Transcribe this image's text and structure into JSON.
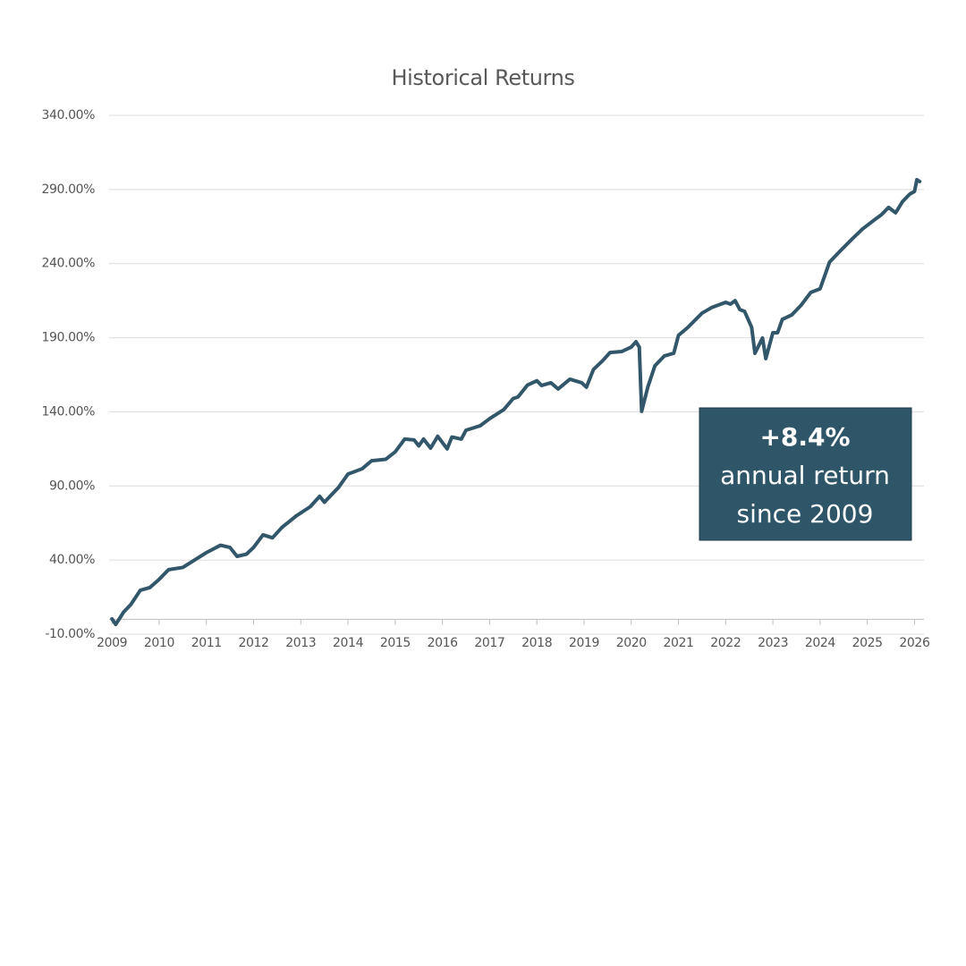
{
  "chart_data": {
    "type": "line",
    "title": "Historical Returns",
    "x": [
      2009.0,
      2009.08,
      2009.25,
      2009.4,
      2009.6,
      2009.8,
      2010.0,
      2010.2,
      2010.5,
      2010.7,
      2011.0,
      2011.3,
      2011.5,
      2011.65,
      2011.85,
      2012.0,
      2012.2,
      2012.4,
      2012.6,
      2012.9,
      2013.2,
      2013.4,
      2013.5,
      2013.8,
      2014.0,
      2014.3,
      2014.5,
      2014.8,
      2015.0,
      2015.2,
      2015.4,
      2015.5,
      2015.6,
      2015.75,
      2015.9,
      2016.1,
      2016.2,
      2016.4,
      2016.5,
      2016.8,
      2017.0,
      2017.3,
      2017.5,
      2017.6,
      2017.8,
      2018.0,
      2018.1,
      2018.3,
      2018.45,
      2018.7,
      2018.95,
      2019.05,
      2019.2,
      2019.4,
      2019.55,
      2019.8,
      2020.0,
      2020.1,
      2020.17,
      2020.22,
      2020.35,
      2020.5,
      2020.7,
      2020.9,
      2021.0,
      2021.2,
      2021.5,
      2021.7,
      2022.0,
      2022.1,
      2022.2,
      2022.3,
      2022.4,
      2022.55,
      2022.62,
      2022.78,
      2022.85,
      2023.0,
      2023.1,
      2023.2,
      2023.4,
      2023.6,
      2023.8,
      2024.0,
      2024.2,
      2024.4,
      2024.7,
      2024.9,
      2025.2,
      2025.3,
      2025.45,
      2025.6,
      2025.75,
      2025.9,
      2026.0,
      2026.05,
      2026.11
    ],
    "series": [
      {
        "color": "#33576a",
        "values": [
          0.3,
          -3.4,
          5,
          10,
          19.6,
          21.4,
          27,
          33.5,
          35,
          39,
          45,
          50,
          48.5,
          42.5,
          44,
          48.5,
          57,
          55,
          62,
          69.7,
          76,
          83,
          79,
          89,
          98,
          101.6,
          107,
          108,
          113,
          121.6,
          121,
          117,
          121.6,
          115.5,
          123.5,
          115,
          123,
          121.6,
          127.6,
          130.6,
          135.4,
          141.5,
          149,
          150,
          158,
          161,
          157.8,
          159.6,
          155.4,
          162,
          159.6,
          156.6,
          168.6,
          174.7,
          180,
          180.7,
          183.7,
          187.3,
          183.7,
          140.3,
          156.6,
          171,
          177.7,
          179.5,
          191.6,
          197,
          206.6,
          210.3,
          213.9,
          212.7,
          215,
          209,
          207.8,
          197,
          179.5,
          189.8,
          175.9,
          193.4,
          193.4,
          202.4,
          205.4,
          212,
          220.5,
          223,
          241,
          247.7,
          257.3,
          263.4,
          270.7,
          273,
          277.9,
          274.3,
          282,
          286.9,
          288.7,
          296.6,
          295.4
        ]
      }
    ],
    "xlim": [
      2008.94,
      2026.2
    ],
    "xticks": [
      2009,
      2010,
      2011,
      2012,
      2013,
      2014,
      2015,
      2016,
      2017,
      2018,
      2019,
      2020,
      2021,
      2022,
      2023,
      2024,
      2025,
      2026
    ],
    "ylim": [
      -10,
      340
    ],
    "yticks": [
      {
        "value": -10,
        "label": "-10.00%"
      },
      {
        "value": 40,
        "label": "40.00%"
      },
      {
        "value": 90,
        "label": "90.00%"
      },
      {
        "value": 140,
        "label": "140.00%"
      },
      {
        "value": 190,
        "label": "190.00%"
      },
      {
        "value": 240,
        "label": "240.00%"
      },
      {
        "value": 290,
        "label": "290.00%"
      },
      {
        "value": 340,
        "label": "340.00%"
      }
    ],
    "grid": true,
    "annotation": {
      "lines": [
        "+8.4%",
        "annual return",
        "since 2009"
      ],
      "color": "#2f5668"
    }
  }
}
